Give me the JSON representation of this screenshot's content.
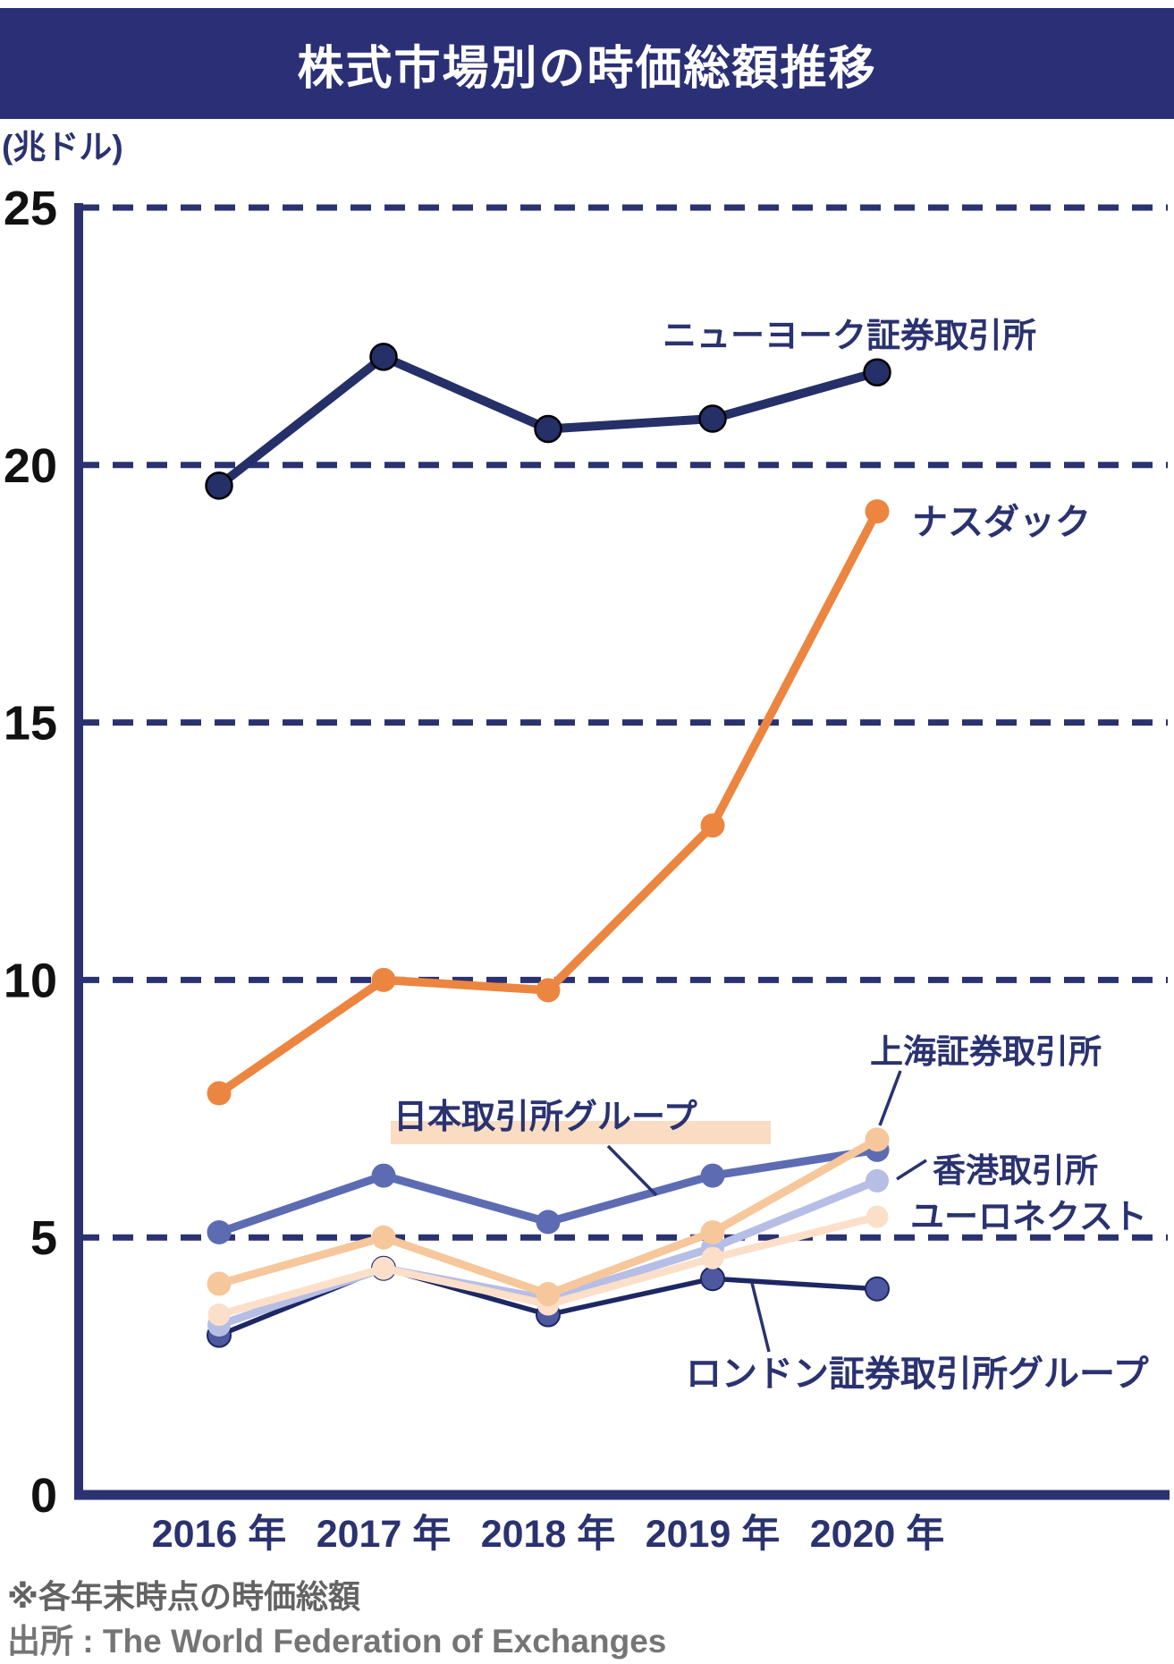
{
  "title": "株式市場別の時価総額推移",
  "y_axis": {
    "unit": "(兆ドル)",
    "ticks": [
      25,
      20,
      15,
      10,
      5,
      0
    ]
  },
  "x_axis": {
    "labels": [
      "2016 年",
      "2017 年",
      "2018 年",
      "2019 年",
      "2020 年"
    ]
  },
  "footnote": "※各年末時点の時価総額",
  "source": "出所 : The World Federation of Exchanges",
  "colors": {
    "banner": "#2b3076",
    "axis": "#2a3270",
    "tick_label": "#111111",
    "annotation": "#2a3270",
    "footnote": "#636363",
    "source": "#757575"
  },
  "chart_data": {
    "type": "line",
    "title": "株式市場別の時価総額推移",
    "ylabel": "兆ドル",
    "categories": [
      "2016年",
      "2017年",
      "2018年",
      "2019年",
      "2020年"
    ],
    "ylim": [
      0,
      25
    ],
    "yticks": [
      0,
      5,
      10,
      15,
      20,
      25
    ],
    "grid": "horizontal-dashed",
    "legend_position": "inline-annotations",
    "series": [
      {
        "id": "nyse",
        "name": "ニューヨーク証券取引所",
        "color": "#252f68",
        "values": [
          19.6,
          22.1,
          20.7,
          20.9,
          21.8
        ]
      },
      {
        "id": "nasdaq",
        "name": "ナスダック",
        "color": "#ec8540",
        "values": [
          7.8,
          10.0,
          9.8,
          13.0,
          19.1
        ]
      },
      {
        "id": "jpx",
        "name": "日本取引所グループ",
        "color": "#5d6cb2",
        "values": [
          5.1,
          6.2,
          5.3,
          6.2,
          6.7
        ],
        "label_highlight": "#fadcc2"
      },
      {
        "id": "sse",
        "name": "上海証券取引所",
        "color": "#f6c79b",
        "values": [
          4.1,
          5.0,
          3.9,
          5.1,
          6.9
        ]
      },
      {
        "id": "hkex",
        "name": "香港取引所",
        "color": "#b6bee6",
        "values": [
          3.3,
          4.4,
          3.8,
          4.8,
          6.1
        ]
      },
      {
        "id": "euronext",
        "name": "ユーロネクスト",
        "color": "#fbdfc8",
        "values": [
          3.5,
          4.4,
          3.7,
          4.6,
          5.4
        ]
      },
      {
        "id": "lse",
        "name": "ロンドン証券取引所グループ",
        "color": "#1d2763",
        "marker_color": "#4e58a0",
        "values": [
          3.1,
          4.4,
          3.5,
          4.2,
          4.0
        ]
      }
    ]
  }
}
